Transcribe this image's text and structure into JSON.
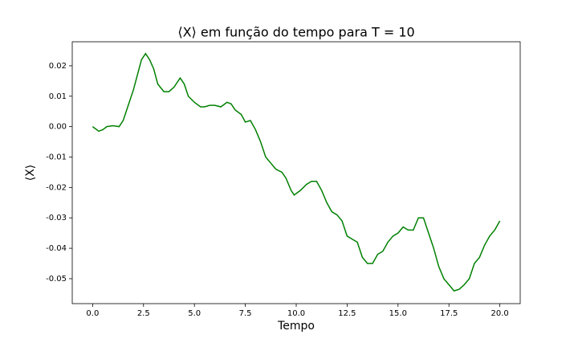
{
  "chart_data": {
    "type": "line",
    "title": "⟨X⟩ em função do tempo para T = 10",
    "xlabel": "Tempo",
    "ylabel": "⟨X⟩",
    "x": [
      0,
      0.3,
      0.5,
      0.7,
      1.0,
      1.3,
      1.5,
      1.75,
      2.0,
      2.2,
      2.4,
      2.6,
      2.8,
      3.0,
      3.2,
      3.5,
      3.75,
      4.0,
      4.3,
      4.5,
      4.7,
      5.0,
      5.3,
      5.5,
      5.75,
      6.0,
      6.3,
      6.6,
      6.8,
      7.0,
      7.3,
      7.5,
      7.75,
      8.0,
      8.25,
      8.5,
      8.75,
      9.0,
      9.3,
      9.5,
      9.75,
      9.9,
      10.2,
      10.5,
      10.75,
      11.0,
      11.25,
      11.5,
      11.75,
      12.0,
      12.25,
      12.5,
      12.75,
      13.0,
      13.25,
      13.5,
      13.75,
      14.0,
      14.25,
      14.5,
      14.75,
      15.0,
      15.25,
      15.5,
      15.75,
      16.0,
      16.25,
      16.5,
      16.75,
      17.0,
      17.25,
      17.5,
      17.75,
      18.0,
      18.25,
      18.5,
      18.75,
      19.0,
      19.25,
      19.5,
      19.75,
      20.0
    ],
    "series": [
      {
        "name": "⟨X⟩",
        "color": "#008000",
        "values": [
          0.0,
          -0.0015,
          -0.001,
          0.0,
          0.0003,
          0.0,
          0.002,
          0.007,
          0.012,
          0.017,
          0.022,
          0.024,
          0.022,
          0.019,
          0.014,
          0.0115,
          0.0115,
          0.013,
          0.016,
          0.014,
          0.01,
          0.008,
          0.0065,
          0.0065,
          0.007,
          0.007,
          0.0065,
          0.008,
          0.0075,
          0.0055,
          0.004,
          0.0015,
          0.002,
          -0.001,
          -0.005,
          -0.01,
          -0.012,
          -0.014,
          -0.015,
          -0.017,
          -0.021,
          -0.0225,
          -0.021,
          -0.019,
          -0.018,
          -0.018,
          -0.021,
          -0.025,
          -0.028,
          -0.029,
          -0.031,
          -0.036,
          -0.037,
          -0.038,
          -0.043,
          -0.045,
          -0.045,
          -0.042,
          -0.041,
          -0.038,
          -0.036,
          -0.035,
          -0.033,
          -0.034,
          -0.034,
          -0.03,
          -0.03,
          -0.035,
          -0.04,
          -0.046,
          -0.05,
          -0.052,
          -0.054,
          -0.0535,
          -0.052,
          -0.05,
          -0.045,
          -0.043,
          -0.039,
          -0.036,
          -0.034,
          -0.031
        ]
      }
    ],
    "xlim": [
      -1.0,
      21.0
    ],
    "ylim": [
      -0.0582,
      0.0279
    ],
    "xticks": [
      {
        "value": 0,
        "label": "0.0"
      },
      2.5,
      {
        "value": 5,
        "label": "5.0"
      },
      7.5,
      {
        "value": 10,
        "label": "10.0"
      },
      12.5,
      {
        "value": 15,
        "label": "15.0"
      },
      17.5,
      {
        "value": 20,
        "label": "20.0"
      }
    ],
    "yticks": [
      -0.05,
      -0.04,
      -0.03,
      -0.02,
      -0.01,
      {
        "value": 0,
        "label": "0.00"
      },
      0.01,
      0.02
    ],
    "grid": false
  }
}
